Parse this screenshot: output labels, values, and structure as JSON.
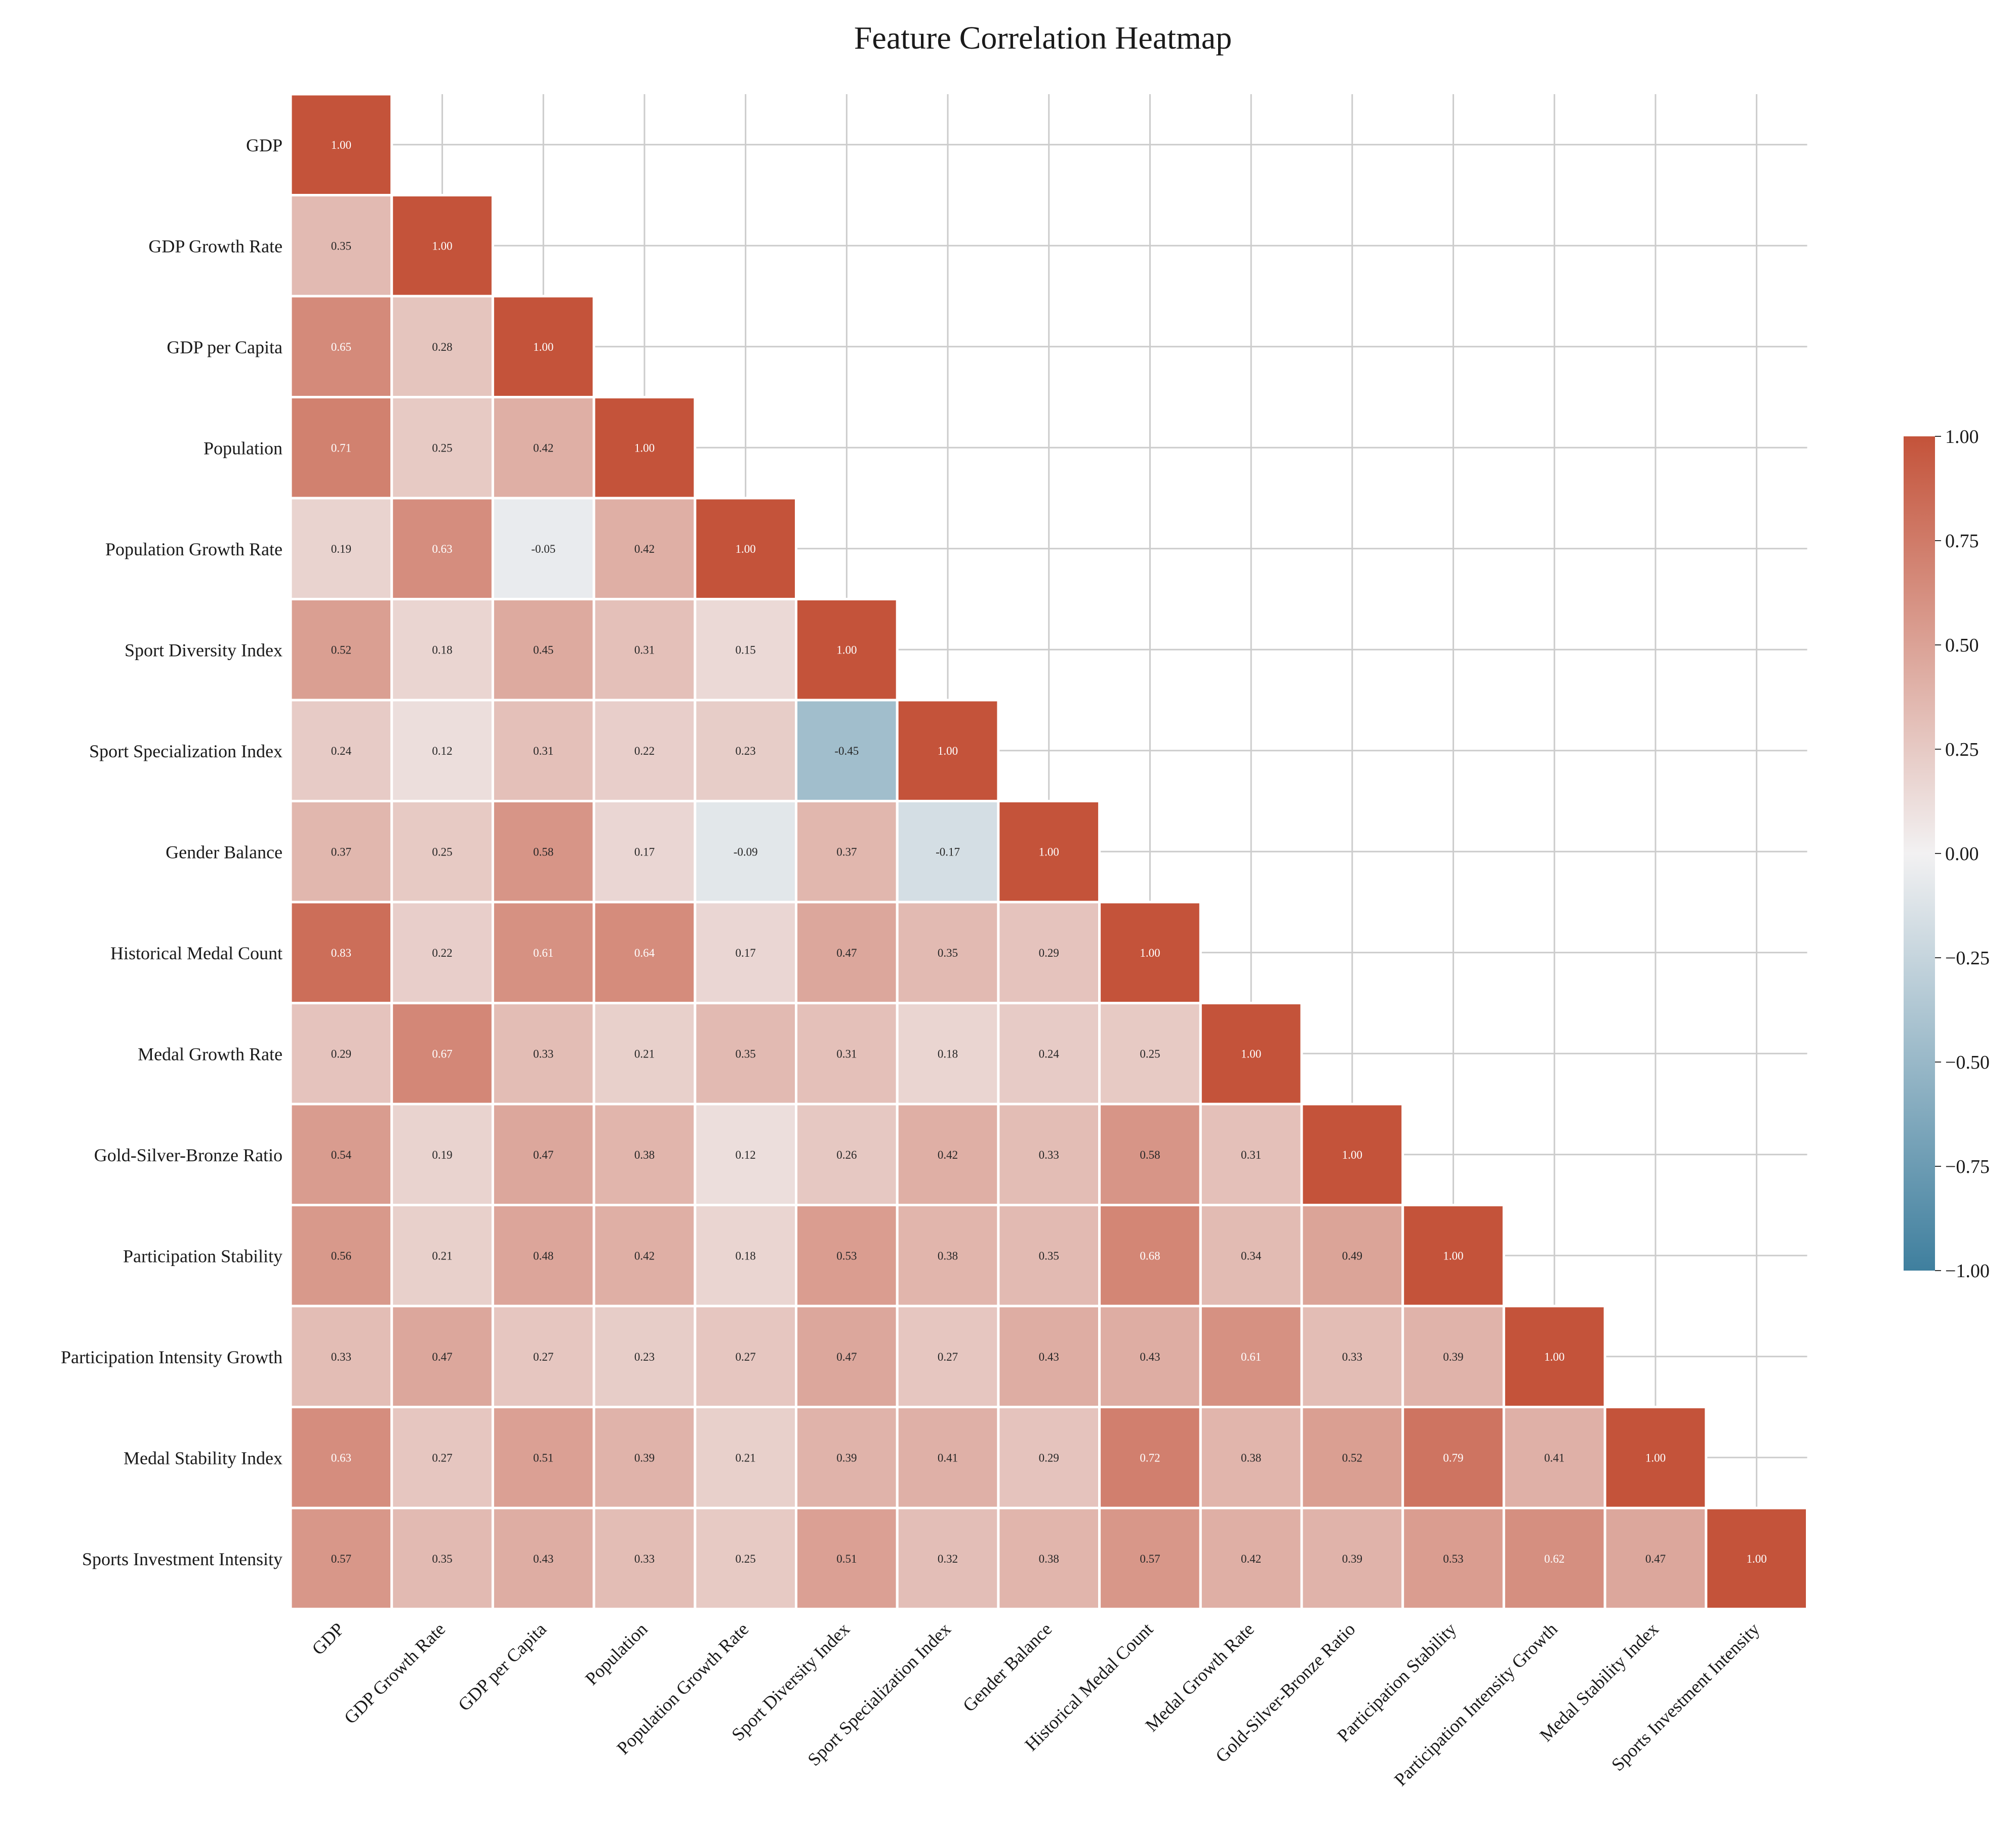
{
  "chart_data": {
    "type": "heatmap",
    "title": "Feature Correlation Heatmap",
    "variables": [
      "GDP",
      "GDP Growth Rate",
      "GDP per Capita",
      "Population",
      "Population Growth Rate",
      "Sport Diversity Index",
      "Sport Specialization Index",
      "Gender Balance",
      "Historical Medal Count",
      "Medal Growth Rate",
      "Gold-Silver-Bronze Ratio",
      "Participation Stability",
      "Participation Intensity Growth",
      "Medal Stability Index",
      "Sports Investment Intensity"
    ],
    "mask": "lower-triangle",
    "values": [
      [
        1.0
      ],
      [
        0.35,
        1.0
      ],
      [
        0.65,
        0.28,
        1.0
      ],
      [
        0.71,
        0.25,
        0.42,
        1.0
      ],
      [
        0.19,
        0.63,
        -0.05,
        0.42,
        1.0
      ],
      [
        0.52,
        0.18,
        0.45,
        0.31,
        0.15,
        1.0
      ],
      [
        0.24,
        0.12,
        0.31,
        0.22,
        0.23,
        -0.45,
        1.0
      ],
      [
        0.37,
        0.25,
        0.58,
        0.17,
        -0.09,
        0.37,
        -0.17,
        1.0
      ],
      [
        0.83,
        0.22,
        0.61,
        0.64,
        0.17,
        0.47,
        0.35,
        0.29,
        1.0
      ],
      [
        0.29,
        0.67,
        0.33,
        0.21,
        0.35,
        0.31,
        0.18,
        0.24,
        0.25,
        1.0
      ],
      [
        0.54,
        0.19,
        0.47,
        0.38,
        0.12,
        0.26,
        0.42,
        0.33,
        0.58,
        0.31,
        1.0
      ],
      [
        0.56,
        0.21,
        0.48,
        0.42,
        0.18,
        0.53,
        0.38,
        0.35,
        0.68,
        0.34,
        0.49,
        1.0
      ],
      [
        0.33,
        0.47,
        0.27,
        0.23,
        0.27,
        0.47,
        0.27,
        0.43,
        0.43,
        0.61,
        0.33,
        0.39,
        1.0
      ],
      [
        0.63,
        0.27,
        0.51,
        0.39,
        0.21,
        0.39,
        0.41,
        0.29,
        0.72,
        0.38,
        0.52,
        0.79,
        0.41,
        1.0
      ],
      [
        0.57,
        0.35,
        0.43,
        0.33,
        0.25,
        0.51,
        0.32,
        0.38,
        0.57,
        0.42,
        0.39,
        0.53,
        0.62,
        0.47,
        1.0
      ]
    ],
    "value_format": "2 decimals",
    "colorbar": {
      "vmin": -1.0,
      "vmax": 1.0,
      "ticks": [
        1.0,
        0.75,
        0.5,
        0.25,
        0.0,
        -0.25,
        -0.5,
        -0.75,
        -1.0
      ],
      "tick_labels": [
        "1.00",
        "0.75",
        "0.50",
        "0.25",
        "0.00",
        "−0.25",
        "−0.50",
        "−0.75",
        "−1.00"
      ],
      "low_color": "#3f7f9e",
      "mid_color": "#f2f1f2",
      "high_color": "#c4533a"
    },
    "grid": true,
    "colorbar_position": "right"
  }
}
